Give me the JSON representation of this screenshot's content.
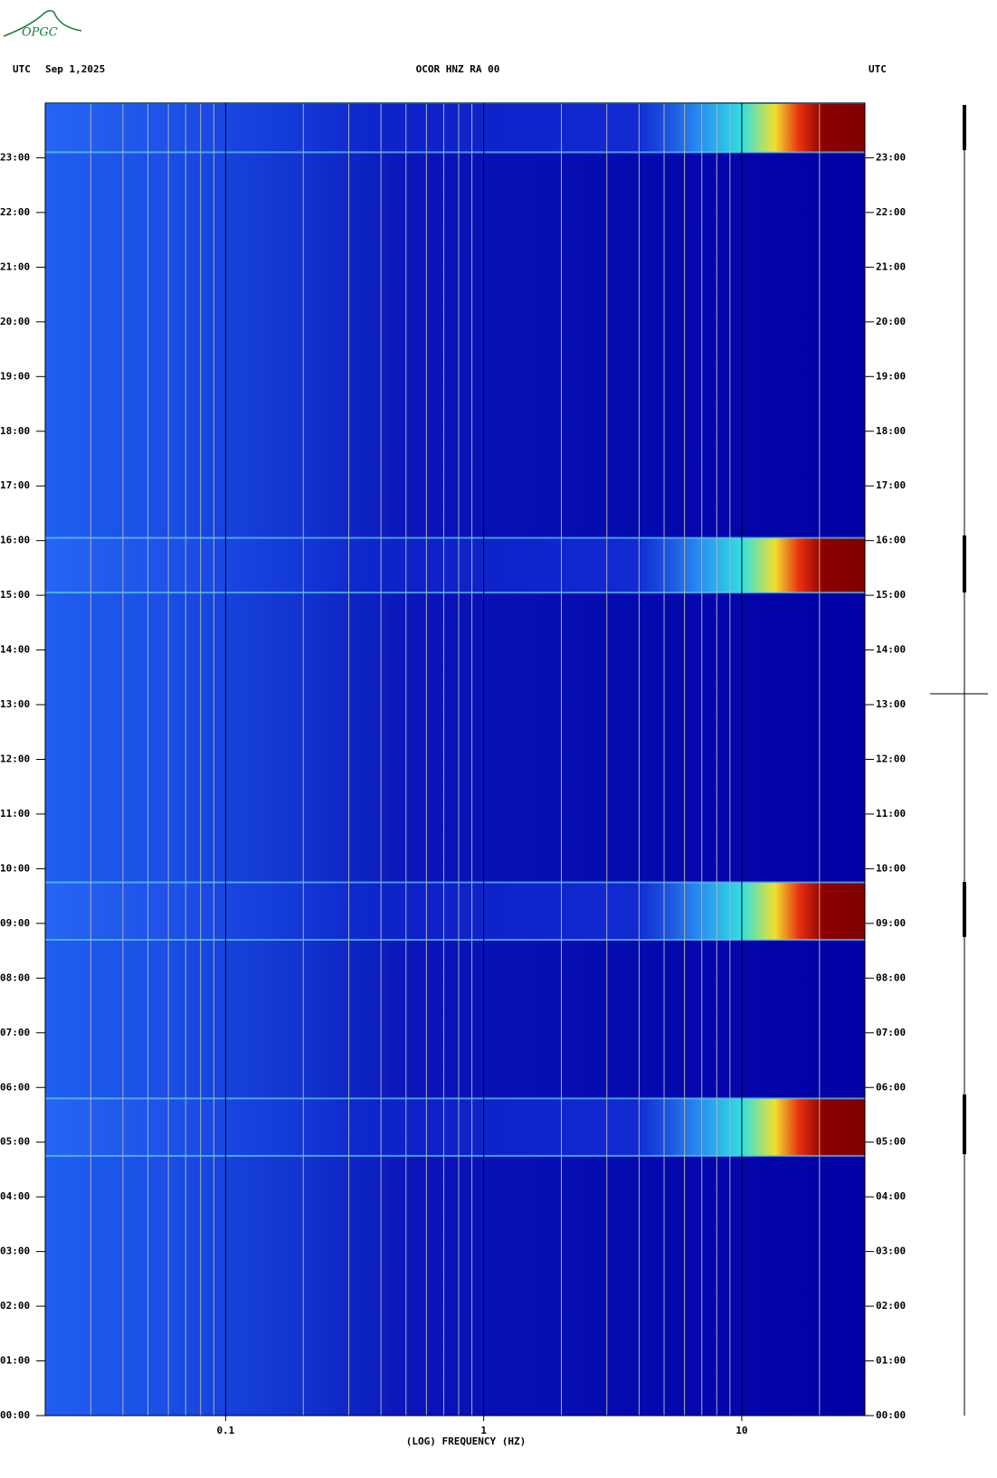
{
  "logo": "OPGC",
  "chart_data": {
    "type": "spectrogram",
    "title": "OCOR HNZ RA 00",
    "date": "Sep 1,2025",
    "left_axis_label": "UTC",
    "right_axis_label": "UTC",
    "xlabel": "(LOG) FREQUENCY (HZ)",
    "log_x": true,
    "xlim": [
      0.02,
      30
    ],
    "xticks": [
      0.1,
      1,
      10
    ],
    "xminor": [
      0.03,
      0.04,
      0.05,
      0.06,
      0.07,
      0.08,
      0.09,
      0.2,
      0.3,
      0.4,
      0.5,
      0.6,
      0.7,
      0.8,
      0.9,
      2,
      3,
      4,
      5,
      6,
      7,
      8,
      9,
      20
    ],
    "ylim": [
      0,
      24
    ],
    "yticks": [
      {
        "value": 0,
        "label": "00:00"
      },
      {
        "value": 1,
        "label": "01:00"
      },
      {
        "value": 2,
        "label": "02:00"
      },
      {
        "value": 3,
        "label": "03:00"
      },
      {
        "value": 4,
        "label": "04:00"
      },
      {
        "value": 5,
        "label": "05:00"
      },
      {
        "value": 6,
        "label": "06:00"
      },
      {
        "value": 7,
        "label": "07:00"
      },
      {
        "value": 8,
        "label": "08:00"
      },
      {
        "value": 9,
        "label": "09:00"
      },
      {
        "value": 10,
        "label": "10:00"
      },
      {
        "value": 11,
        "label": "11:00"
      },
      {
        "value": 12,
        "label": "12:00"
      },
      {
        "value": 13,
        "label": "13:00"
      },
      {
        "value": 14,
        "label": "14:00"
      },
      {
        "value": 15,
        "label": "15:00"
      },
      {
        "value": 16,
        "label": "16:00"
      },
      {
        "value": 17,
        "label": "17:00"
      },
      {
        "value": 18,
        "label": "18:00"
      },
      {
        "value": 19,
        "label": "19:00"
      },
      {
        "value": 20,
        "label": "20:00"
      },
      {
        "value": 21,
        "label": "21:00"
      },
      {
        "value": 22,
        "label": "22:00"
      },
      {
        "value": 23,
        "label": "23:00"
      }
    ],
    "bursts": [
      {
        "start": 4.75,
        "end": 5.8
      },
      {
        "start": 8.7,
        "end": 9.75
      },
      {
        "start": 15.05,
        "end": 16.05
      },
      {
        "start": 23.1,
        "end": 24
      }
    ]
  }
}
